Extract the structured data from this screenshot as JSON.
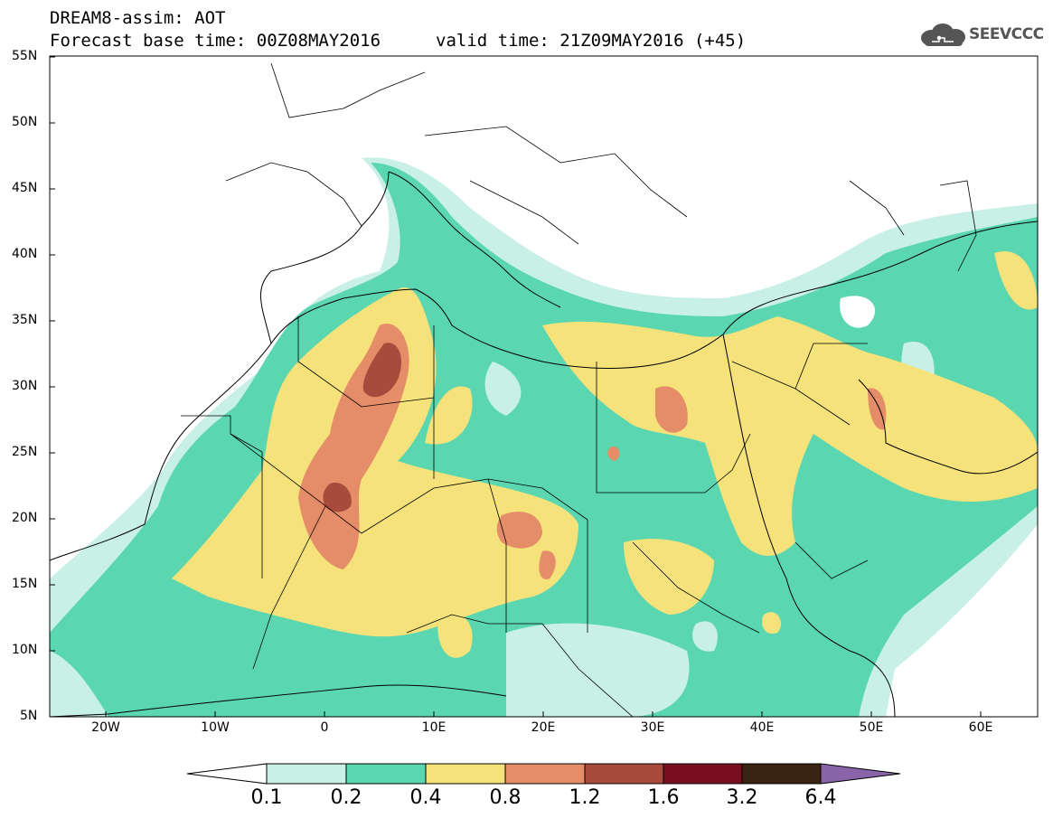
{
  "title": {
    "line1": "DREAM8-assim: AOT",
    "line2": "Forecast base time: 00Z08MAY2016",
    "valid": "valid time: 21Z09MAY2016 (+45)"
  },
  "logo": {
    "text": "SEEVCCC",
    "icon": "cloud-icon"
  },
  "map": {
    "lat_labels": [
      "55N",
      "50N",
      "45N",
      "40N",
      "35N",
      "30N",
      "25N",
      "20N",
      "15N",
      "10N",
      "5N"
    ],
    "lon_labels": [
      "20W",
      "10W",
      "0",
      "10E",
      "20E",
      "30E",
      "40E",
      "50E",
      "60E"
    ],
    "region": "North Africa, Mediterranean, Middle East",
    "lon_range": [
      -25,
      65
    ],
    "lat_range": [
      5,
      55
    ]
  },
  "colorbar": {
    "labels": [
      "0.1",
      "0.2",
      "0.4",
      "0.8",
      "1.2",
      "1.6",
      "3.2",
      "6.4"
    ],
    "colors": {
      "below": "#ffffff",
      "c01_02": "#c8f0e6",
      "c02_04": "#5ad6b0",
      "c04_08": "#f5e27a",
      "c08_12": "#e58c68",
      "c12_16": "#a84a3c",
      "c16_32": "#7a0f22",
      "c32_64": "#3c2414",
      "above": "#8a64a8"
    }
  }
}
